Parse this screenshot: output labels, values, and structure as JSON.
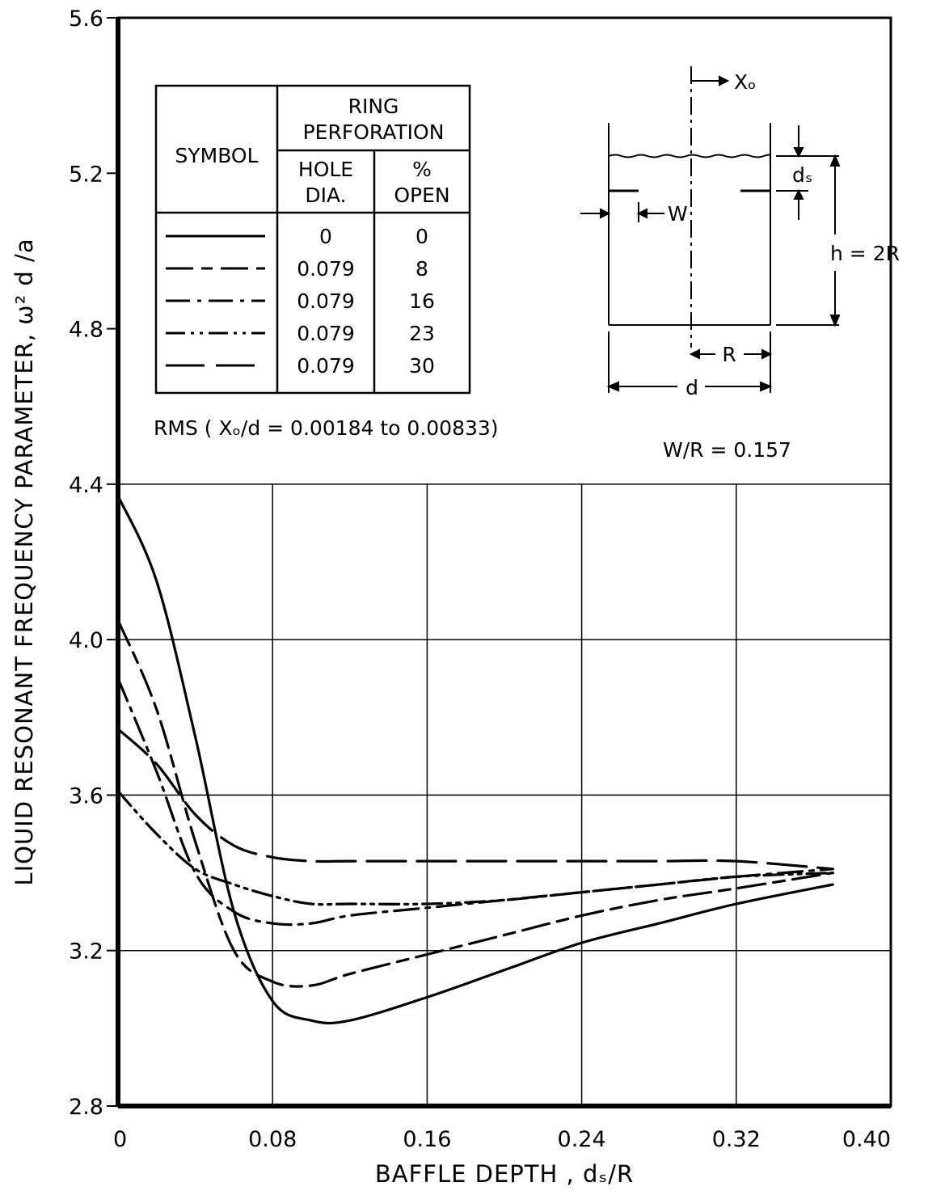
{
  "chart_data": {
    "type": "line",
    "xlabel": "BAFFLE DEPTH , dₛ/R",
    "ylabel": "LIQUID RESONANT FREQUENCY PARAMETER, ω² d /a",
    "xlim": [
      0,
      0.4
    ],
    "ylim": [
      2.8,
      5.6
    ],
    "x_ticks": [
      "0",
      "0.08",
      "0.16",
      "0.24",
      "0.32",
      "0.40"
    ],
    "y_ticks": [
      "2.8",
      "3.2",
      "3.6",
      "4.0",
      "4.4",
      "4.8",
      "5.2",
      "5.6"
    ],
    "grid": "lower region only (y ≤ 4.4)",
    "series": [
      {
        "hole_dia": "0",
        "open": "0",
        "style": "solid",
        "x": [
          0,
          0.02,
          0.04,
          0.06,
          0.08,
          0.1,
          0.12,
          0.16,
          0.2,
          0.24,
          0.28,
          0.32,
          0.37
        ],
        "y": [
          4.37,
          4.15,
          3.75,
          3.3,
          3.07,
          3.02,
          3.02,
          3.08,
          3.15,
          3.22,
          3.27,
          3.32,
          3.37
        ]
      },
      {
        "hole_dia": "0.079",
        "open": "8",
        "style": "long-short dash",
        "x": [
          0,
          0.02,
          0.04,
          0.06,
          0.08,
          0.1,
          0.12,
          0.16,
          0.2,
          0.24,
          0.28,
          0.32,
          0.37
        ],
        "y": [
          4.05,
          3.82,
          3.48,
          3.2,
          3.12,
          3.11,
          3.14,
          3.19,
          3.24,
          3.29,
          3.33,
          3.36,
          3.4
        ]
      },
      {
        "hole_dia": "0.079",
        "open": "16",
        "style": "dash-dot",
        "x": [
          0,
          0.02,
          0.04,
          0.06,
          0.08,
          0.1,
          0.12,
          0.16,
          0.2,
          0.24,
          0.28,
          0.32,
          0.37
        ],
        "y": [
          3.9,
          3.66,
          3.4,
          3.3,
          3.27,
          3.27,
          3.29,
          3.31,
          3.33,
          3.35,
          3.37,
          3.39,
          3.41
        ]
      },
      {
        "hole_dia": "0.079",
        "open": "23",
        "style": "dash-dot-dot",
        "x": [
          0,
          0.02,
          0.04,
          0.06,
          0.08,
          0.1,
          0.12,
          0.16,
          0.2,
          0.24,
          0.28,
          0.32,
          0.37
        ],
        "y": [
          3.61,
          3.5,
          3.41,
          3.37,
          3.34,
          3.32,
          3.32,
          3.32,
          3.33,
          3.35,
          3.37,
          3.39,
          3.4
        ]
      },
      {
        "hole_dia": "0.079",
        "open": "30",
        "style": "long dash",
        "x": [
          0,
          0.02,
          0.04,
          0.06,
          0.08,
          0.1,
          0.12,
          0.16,
          0.2,
          0.24,
          0.28,
          0.32,
          0.37
        ],
        "y": [
          3.77,
          3.68,
          3.55,
          3.47,
          3.44,
          3.43,
          3.43,
          3.43,
          3.43,
          3.43,
          3.43,
          3.43,
          3.41
        ]
      }
    ]
  },
  "legend": {
    "symbol_header": "SYMBOL",
    "ring_header_line1": "RING",
    "ring_header_line2": "PERFORATION",
    "hole_header_line1": "HOLE",
    "hole_header_line2": "DIA.",
    "open_header_line1": "%",
    "open_header_line2": "OPEN",
    "rows": [
      {
        "hole": "0",
        "open": "0"
      },
      {
        "hole": "0.079",
        "open": "8"
      },
      {
        "hole": "0.079",
        "open": "16"
      },
      {
        "hole": "0.079",
        "open": "23"
      },
      {
        "hole": "0.079",
        "open": "30"
      }
    ]
  },
  "notes": {
    "rms": "RMS ( Xₒ/d = 0.00184  to 0.00833)",
    "wr": "W/R = 0.157"
  },
  "diagram": {
    "x0": "Xₒ",
    "w": "W",
    "ds": "dₛ",
    "h": "h = 2R",
    "r": "R",
    "d": "d"
  }
}
